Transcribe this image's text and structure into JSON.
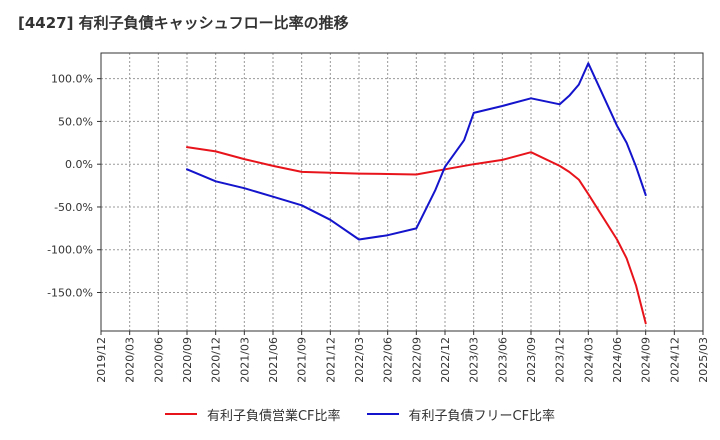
{
  "chart_data": {
    "type": "line",
    "title": "[4427]  有利子負債キャッシュフロー比率の推移",
    "xlabel": "",
    "ylabel": "",
    "ylim": [
      -195,
      130
    ],
    "y_ticks": [
      100,
      50,
      0,
      -50,
      -100,
      -150
    ],
    "y_tick_labels": [
      "100.0%",
      "50.0%",
      "0.0%",
      "-50.0%",
      "-100.0%",
      "-150.0%"
    ],
    "x_categories": [
      "2019/12",
      "2020/03",
      "2020/06",
      "2020/09",
      "2020/12",
      "2021/03",
      "2021/06",
      "2021/09",
      "2021/12",
      "2022/03",
      "2022/06",
      "2022/09",
      "2022/12",
      "2023/03",
      "2023/06",
      "2023/09",
      "2023/12",
      "2024/03",
      "2024/06",
      "2024/09",
      "2024/12",
      "2025/03"
    ],
    "grid": true,
    "legend_position": "bottom",
    "series": [
      {
        "name": "有利子負債営業CF比率",
        "color": "#e8141c",
        "points": [
          [
            "2020/09",
            20
          ],
          [
            "2020/12",
            15
          ],
          [
            "2021/03",
            6
          ],
          [
            "2021/06",
            -2
          ],
          [
            "2021/09",
            -9
          ],
          [
            "2021/12",
            -10
          ],
          [
            "2022/03",
            -11
          ],
          [
            "2022/06",
            -11.5
          ],
          [
            "2022/09",
            -12
          ],
          [
            "2022/12",
            -6
          ],
          [
            "2023/03",
            0
          ],
          [
            "2023/06",
            5
          ],
          [
            "2023/09",
            14
          ],
          [
            "2023/12",
            -2
          ],
          [
            "2024/01",
            -9
          ],
          [
            "2024/02",
            -18
          ],
          [
            "2024/03",
            -35
          ],
          [
            "2024/06",
            -88
          ],
          [
            "2024/07",
            -110
          ],
          [
            "2024/08",
            -142
          ],
          [
            "2024/09",
            -186
          ]
        ]
      },
      {
        "name": "有利子負債フリーCF比率",
        "color": "#1414cc",
        "points": [
          [
            "2020/09",
            -6
          ],
          [
            "2020/12",
            -20
          ],
          [
            "2021/03",
            -28
          ],
          [
            "2021/06",
            -38
          ],
          [
            "2021/09",
            -48
          ],
          [
            "2021/12",
            -65
          ],
          [
            "2022/03",
            -88
          ],
          [
            "2022/06",
            -83
          ],
          [
            "2022/09",
            -75
          ],
          [
            "2022/11",
            -30
          ],
          [
            "2022/12",
            -3
          ],
          [
            "2023/02",
            28
          ],
          [
            "2023/03",
            60
          ],
          [
            "2023/06",
            68
          ],
          [
            "2023/09",
            77
          ],
          [
            "2023/12",
            70
          ],
          [
            "2024/01",
            80
          ],
          [
            "2024/02",
            93
          ],
          [
            "2024/03",
            118
          ],
          [
            "2024/06",
            45
          ],
          [
            "2024/07",
            25
          ],
          [
            "2024/08",
            -3
          ],
          [
            "2024/09",
            -36
          ]
        ]
      }
    ]
  }
}
